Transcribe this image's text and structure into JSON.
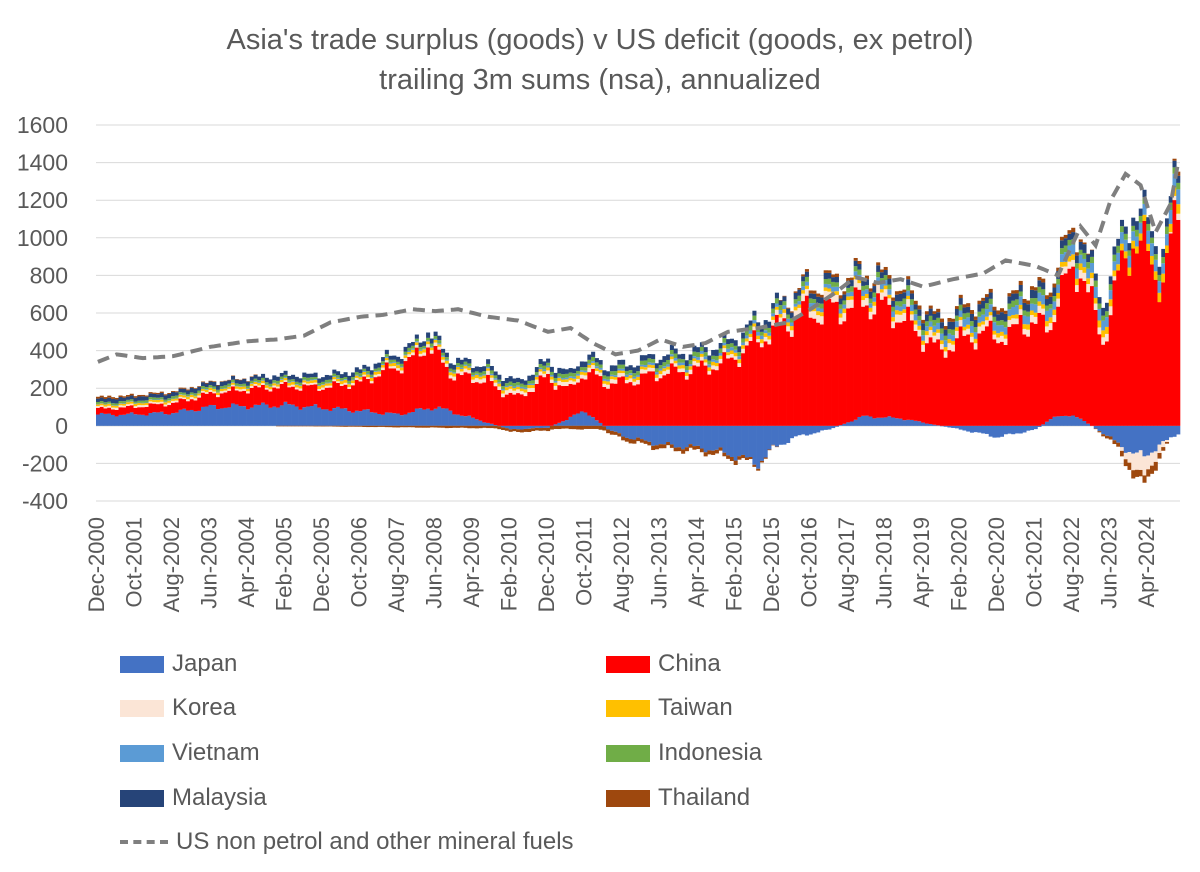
{
  "chart_data": {
    "type": "bar",
    "title": "Asia's trade surplus (goods) v US deficit (goods, ex petrol)",
    "subtitle": "trailing 3m sums (nsa), annualized",
    "xlabel": "",
    "ylabel": "",
    "ylim": [
      -400,
      1600
    ],
    "yticks": [
      -400,
      -200,
      0,
      200,
      400,
      600,
      800,
      1000,
      1200,
      1400,
      1600
    ],
    "grid": true,
    "legend_position": "bottom",
    "x_tick_labels": [
      "Dec-2000",
      "Oct-2001",
      "Aug-2002",
      "Jun-2003",
      "Apr-2004",
      "Feb-2005",
      "Dec-2005",
      "Oct-2006",
      "Aug-2007",
      "Jun-2008",
      "Apr-2009",
      "Feb-2010",
      "Dec-2010",
      "Oct-2011",
      "Aug-2012",
      "Jun-2013",
      "Apr-2014",
      "Feb-2015",
      "Dec-2015",
      "Oct-2016",
      "Aug-2017",
      "Jun-2018",
      "Apr-2019",
      "Feb-2020",
      "Dec-2020",
      "Oct-2021",
      "Aug-2022",
      "Jun-2023",
      "Apr-2024"
    ],
    "tick_interval_months": 10,
    "n_periods": 289,
    "series": [
      {
        "name": "Japan",
        "color": "#4472c4",
        "points": [
          [
            0,
            60
          ],
          [
            8,
            60
          ],
          [
            20,
            70
          ],
          [
            30,
            100
          ],
          [
            50,
            110
          ],
          [
            70,
            80
          ],
          [
            80,
            60
          ],
          [
            90,
            100
          ],
          [
            110,
            -20
          ],
          [
            120,
            -10
          ],
          [
            130,
            80
          ],
          [
            136,
            -20
          ],
          [
            141,
            -60
          ],
          [
            150,
            -100
          ],
          [
            162,
            -120
          ],
          [
            170,
            -160
          ],
          [
            176,
            -200
          ],
          [
            180,
            -120
          ],
          [
            186,
            -60
          ],
          [
            195,
            -20
          ],
          [
            204,
            50
          ],
          [
            214,
            40
          ],
          [
            230,
            -20
          ],
          [
            240,
            -60
          ],
          [
            250,
            -20
          ],
          [
            256,
            60
          ],
          [
            262,
            40
          ],
          [
            268,
            -40
          ],
          [
            276,
            -150
          ],
          [
            279,
            -160
          ],
          [
            282,
            -120
          ],
          [
            288,
            -40
          ]
        ]
      },
      {
        "name": "China",
        "color": "#ff0000",
        "points": [
          [
            0,
            30
          ],
          [
            20,
            50
          ],
          [
            40,
            90
          ],
          [
            60,
            110
          ],
          [
            70,
            150
          ],
          [
            78,
            240
          ],
          [
            84,
            280
          ],
          [
            88,
            340
          ],
          [
            94,
            200
          ],
          [
            104,
            220
          ],
          [
            112,
            150
          ],
          [
            120,
            260
          ],
          [
            126,
            150
          ],
          [
            132,
            230
          ],
          [
            140,
            230
          ],
          [
            150,
            280
          ],
          [
            160,
            300
          ],
          [
            168,
            340
          ],
          [
            178,
            480
          ],
          [
            188,
            600
          ],
          [
            198,
            620
          ],
          [
            208,
            600
          ],
          [
            214,
            540
          ],
          [
            224,
            400
          ],
          [
            234,
            490
          ],
          [
            244,
            480
          ],
          [
            246,
            560
          ],
          [
            250,
            540
          ],
          [
            254,
            500
          ],
          [
            256,
            640
          ],
          [
            262,
            820
          ],
          [
            268,
            450
          ],
          [
            272,
            780
          ],
          [
            276,
            1000
          ],
          [
            280,
            900
          ],
          [
            284,
            760
          ],
          [
            288,
            1150
          ]
        ]
      },
      {
        "name": "Korea",
        "color": "#fbe5d6",
        "points": [
          [
            0,
            10
          ],
          [
            70,
            10
          ],
          [
            100,
            20
          ],
          [
            140,
            20
          ],
          [
            176,
            20
          ],
          [
            190,
            40
          ],
          [
            210,
            40
          ],
          [
            240,
            30
          ],
          [
            260,
            40
          ],
          [
            270,
            40
          ],
          [
            276,
            -80
          ],
          [
            279,
            -100
          ],
          [
            282,
            -60
          ],
          [
            288,
            40
          ]
        ]
      },
      {
        "name": "Taiwan",
        "color": "#ffc000",
        "points": [
          [
            0,
            10
          ],
          [
            80,
            15
          ],
          [
            140,
            15
          ],
          [
            190,
            20
          ],
          [
            240,
            20
          ],
          [
            260,
            30
          ],
          [
            280,
            40
          ],
          [
            288,
            50
          ]
        ]
      },
      {
        "name": "Vietnam",
        "color": "#5b9bd5",
        "points": [
          [
            0,
            2
          ],
          [
            80,
            5
          ],
          [
            140,
            10
          ],
          [
            190,
            20
          ],
          [
            220,
            30
          ],
          [
            240,
            40
          ],
          [
            260,
            50
          ],
          [
            280,
            60
          ],
          [
            288,
            70
          ]
        ]
      },
      {
        "name": "Indonesia",
        "color": "#70ad47",
        "points": [
          [
            0,
            10
          ],
          [
            100,
            15
          ],
          [
            140,
            20
          ],
          [
            190,
            25
          ],
          [
            260,
            30
          ],
          [
            288,
            35
          ]
        ]
      },
      {
        "name": "Malaysia",
        "color": "#264478",
        "points": [
          [
            0,
            20
          ],
          [
            100,
            25
          ],
          [
            190,
            30
          ],
          [
            260,
            40
          ],
          [
            288,
            40
          ]
        ]
      },
      {
        "name": "Thailand",
        "color": "#9e480e",
        "points": [
          [
            0,
            10
          ],
          [
            90,
            -10
          ],
          [
            140,
            -20
          ],
          [
            170,
            -20
          ],
          [
            190,
            15
          ],
          [
            260,
            20
          ],
          [
            276,
            -40
          ],
          [
            282,
            -40
          ],
          [
            288,
            20
          ]
        ]
      }
    ],
    "line_series": {
      "name": "US non petrol and other mineral fuels",
      "color": "#7f7f7f",
      "style": "dashed",
      "points": [
        [
          0,
          340
        ],
        [
          5,
          380
        ],
        [
          12,
          360
        ],
        [
          20,
          370
        ],
        [
          30,
          420
        ],
        [
          40,
          450
        ],
        [
          48,
          460
        ],
        [
          55,
          480
        ],
        [
          62,
          550
        ],
        [
          70,
          580
        ],
        [
          76,
          590
        ],
        [
          84,
          620
        ],
        [
          90,
          610
        ],
        [
          96,
          620
        ],
        [
          104,
          580
        ],
        [
          112,
          560
        ],
        [
          120,
          500
        ],
        [
          126,
          520
        ],
        [
          132,
          440
        ],
        [
          138,
          380
        ],
        [
          144,
          400
        ],
        [
          150,
          460
        ],
        [
          156,
          420
        ],
        [
          162,
          440
        ],
        [
          168,
          500
        ],
        [
          176,
          520
        ],
        [
          184,
          550
        ],
        [
          190,
          620
        ],
        [
          196,
          700
        ],
        [
          202,
          790
        ],
        [
          208,
          760
        ],
        [
          214,
          780
        ],
        [
          220,
          740
        ],
        [
          228,
          780
        ],
        [
          236,
          810
        ],
        [
          242,
          880
        ],
        [
          250,
          850
        ],
        [
          256,
          800
        ],
        [
          262,
          1060
        ],
        [
          266,
          960
        ],
        [
          270,
          1200
        ],
        [
          274,
          1340
        ],
        [
          278,
          1280
        ],
        [
          282,
          1030
        ],
        [
          286,
          1180
        ],
        [
          288,
          1400
        ]
      ]
    }
  }
}
